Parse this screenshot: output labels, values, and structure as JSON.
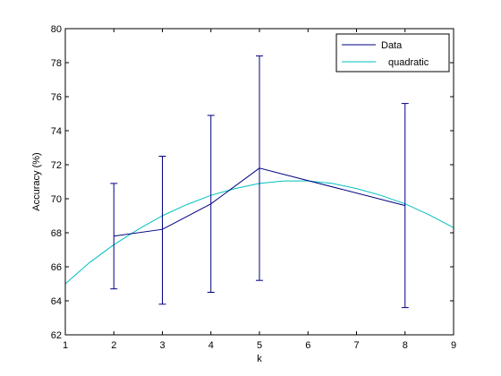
{
  "chart_data": {
    "type": "line",
    "xlabel": "k",
    "ylabel": "Accuracy (%)",
    "xlim": [
      1,
      9
    ],
    "ylim": [
      62,
      80
    ],
    "xticks": [
      1,
      2,
      3,
      4,
      5,
      6,
      7,
      8,
      9
    ],
    "yticks": [
      62,
      64,
      66,
      68,
      70,
      72,
      74,
      76,
      78,
      80
    ],
    "grid": false,
    "legend_position": "top-right",
    "series": [
      {
        "name": "Data",
        "color": "#000080",
        "style": "line-with-errorbars",
        "x": [
          2,
          3,
          4,
          5,
          8
        ],
        "y": [
          67.8,
          68.2,
          69.7,
          71.8,
          69.6
        ],
        "error_low": [
          64.7,
          63.8,
          64.5,
          65.2,
          63.6
        ],
        "error_high": [
          70.9,
          72.5,
          74.9,
          78.4,
          75.6
        ]
      },
      {
        "name": "quadratic",
        "color": "#00BFBF",
        "style": "curve",
        "x": [
          1,
          1.5,
          2,
          2.5,
          3,
          3.5,
          4,
          4.5,
          5,
          5.5,
          6,
          6.5,
          7,
          7.5,
          8,
          8.5,
          9
        ],
        "y": [
          65.0,
          66.25,
          67.3,
          68.2,
          69.0,
          69.65,
          70.2,
          70.6,
          70.9,
          71.05,
          71.05,
          70.9,
          70.6,
          70.2,
          69.7,
          69.05,
          68.3
        ]
      }
    ]
  }
}
